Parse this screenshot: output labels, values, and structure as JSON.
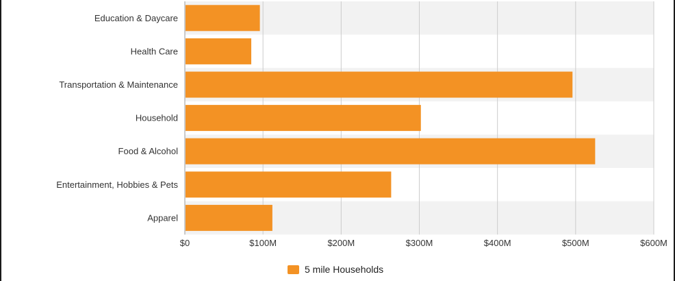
{
  "chart_data": {
    "type": "bar",
    "orientation": "horizontal",
    "categories": [
      "Education & Daycare",
      "Health Care",
      "Transportation & Maintenance",
      "Household",
      "Food & Alcohol",
      "Entertainment, Hobbies & Pets",
      "Apparel"
    ],
    "series": [
      {
        "name": "5 mile Households",
        "values": [
          96,
          85,
          496,
          302,
          525,
          264,
          112
        ],
        "color": "#f39224"
      }
    ],
    "unit": "millions USD",
    "xlim": [
      0,
      600
    ],
    "x_ticks": [
      0,
      100,
      200,
      300,
      400,
      500,
      600
    ],
    "x_tick_labels": [
      "$0",
      "$100M",
      "$200M",
      "$300M",
      "$400M",
      "$500M",
      "$600M"
    ],
    "grid": true,
    "row_band_color": "#f2f2f2",
    "gridline_color": "#cccccc",
    "legend_position": "bottom-center"
  }
}
